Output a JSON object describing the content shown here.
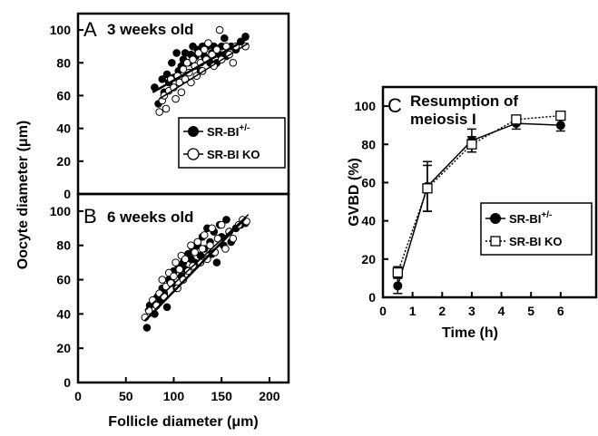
{
  "chart_data": [
    {
      "panel": "A",
      "type": "scatter",
      "title": "3 weeks old",
      "ylabel": "Oocyte diameter (μm)",
      "xlim": [
        0,
        220
      ],
      "ylim": [
        0,
        110
      ],
      "yticks": [
        0,
        20,
        40,
        60,
        80,
        100
      ],
      "legend": "center-right",
      "series": [
        {
          "name": "SR-BI+/-",
          "marker": "filled-circle",
          "points": [
            [
              80,
              65
            ],
            [
              84,
              55
            ],
            [
              88,
              70
            ],
            [
              90,
              62
            ],
            [
              93,
              73
            ],
            [
              95,
              68
            ],
            [
              98,
              80
            ],
            [
              100,
              71
            ],
            [
              103,
              86
            ],
            [
              105,
              75
            ],
            [
              108,
              78
            ],
            [
              110,
              82
            ],
            [
              112,
              86
            ],
            [
              115,
              80
            ],
            [
              118,
              85
            ],
            [
              120,
              90
            ],
            [
              123,
              84
            ],
            [
              125,
              88
            ],
            [
              128,
              75
            ],
            [
              130,
              90
            ],
            [
              132,
              84
            ],
            [
              135,
              90
            ],
            [
              138,
              80
            ],
            [
              140,
              86
            ],
            [
              142,
              90
            ],
            [
              145,
              80
            ],
            [
              148,
              85
            ],
            [
              150,
              90
            ],
            [
              153,
              95
            ],
            [
              155,
              84
            ],
            [
              160,
              90
            ],
            [
              165,
              88
            ],
            [
              170,
              93
            ],
            [
              175,
              96
            ]
          ],
          "trend": [
            [
              78,
              62
            ],
            [
              178,
              95
            ]
          ]
        },
        {
          "name": "SR-BI KO",
          "marker": "open-circle",
          "points": [
            [
              85,
              50
            ],
            [
              88,
              57
            ],
            [
              90,
              60
            ],
            [
              92,
              52
            ],
            [
              95,
              63
            ],
            [
              97,
              70
            ],
            [
              100,
              65
            ],
            [
              102,
              58
            ],
            [
              104,
              72
            ],
            [
              106,
              68
            ],
            [
              108,
              62
            ],
            [
              110,
              76
            ],
            [
              112,
              70
            ],
            [
              114,
              80
            ],
            [
              116,
              74
            ],
            [
              118,
              68
            ],
            [
              120,
              82
            ],
            [
              122,
              78
            ],
            [
              124,
              72
            ],
            [
              126,
              86
            ],
            [
              128,
              80
            ],
            [
              130,
              75
            ],
            [
              132,
              88
            ],
            [
              134,
              82
            ],
            [
              136,
              92
            ],
            [
              140,
              85
            ],
            [
              142,
              78
            ],
            [
              145,
              88
            ],
            [
              148,
              100
            ],
            [
              150,
              82
            ],
            [
              155,
              90
            ],
            [
              158,
              85
            ],
            [
              162,
              80
            ],
            [
              165,
              90
            ],
            [
              175,
              90
            ]
          ],
          "trend": [
            [
              85,
              58
            ],
            [
              178,
              92
            ]
          ]
        }
      ]
    },
    {
      "panel": "B",
      "type": "scatter",
      "title": "6 weeks old",
      "xlabel": "Follicle diameter (μm)",
      "xlim": [
        0,
        220
      ],
      "ylim": [
        0,
        110
      ],
      "xticks": [
        0,
        50,
        100,
        150,
        200
      ],
      "yticks": [
        0,
        20,
        40,
        60,
        80,
        100
      ],
      "series": [
        {
          "name": "SR-BI+/-",
          "marker": "filled-circle",
          "points": [
            [
              72,
              32
            ],
            [
              75,
              45
            ],
            [
              80,
              40
            ],
            [
              83,
              50
            ],
            [
              86,
              48
            ],
            [
              88,
              55
            ],
            [
              90,
              52
            ],
            [
              93,
              44
            ],
            [
              95,
              60
            ],
            [
              98,
              58
            ],
            [
              100,
              65
            ],
            [
              103,
              55
            ],
            [
              105,
              68
            ],
            [
              108,
              62
            ],
            [
              110,
              70
            ],
            [
              112,
              66
            ],
            [
              115,
              75
            ],
            [
              118,
              72
            ],
            [
              120,
              78
            ],
            [
              122,
              70
            ],
            [
              125,
              80
            ],
            [
              128,
              74
            ],
            [
              130,
              85
            ],
            [
              132,
              78
            ],
            [
              135,
              90
            ],
            [
              138,
              82
            ],
            [
              140,
              75
            ],
            [
              142,
              88
            ],
            [
              145,
              70
            ],
            [
              148,
              92
            ],
            [
              150,
              85
            ],
            [
              152,
              80
            ],
            [
              155,
              95
            ],
            [
              158,
              88
            ],
            [
              160,
              82
            ],
            [
              165,
              90
            ],
            [
              170,
              92
            ],
            [
              175,
              93
            ]
          ],
          "trend": [
            [
              70,
              36
            ],
            [
              175,
              96
            ]
          ]
        },
        {
          "name": "SR-BI KO",
          "marker": "open-circle",
          "points": [
            [
              70,
              38
            ],
            [
              74,
              42
            ],
            [
              78,
              48
            ],
            [
              82,
              45
            ],
            [
              85,
              52
            ],
            [
              88,
              60
            ],
            [
              90,
              50
            ],
            [
              92,
              56
            ],
            [
              95,
              64
            ],
            [
              97,
              58
            ],
            [
              100,
              62
            ],
            [
              102,
              70
            ],
            [
              104,
              55
            ],
            [
              106,
              66
            ],
            [
              108,
              74
            ],
            [
              110,
              60
            ],
            [
              112,
              72
            ],
            [
              115,
              65
            ],
            [
              118,
              80
            ],
            [
              120,
              68
            ],
            [
              122,
              76
            ],
            [
              125,
              82
            ],
            [
              128,
              70
            ],
            [
              130,
              78
            ],
            [
              132,
              86
            ],
            [
              135,
              72
            ],
            [
              138,
              80
            ],
            [
              140,
              90
            ],
            [
              143,
              76
            ],
            [
              146,
              84
            ],
            [
              150,
              92
            ],
            [
              154,
              78
            ],
            [
              158,
              88
            ],
            [
              162,
              84
            ],
            [
              168,
              92
            ],
            [
              172,
              95
            ],
            [
              176,
              94
            ]
          ],
          "trend": [
            [
              70,
              42
            ],
            [
              178,
              98
            ]
          ]
        }
      ]
    },
    {
      "panel": "C",
      "type": "line",
      "title": "Resumption of meiosis I",
      "title_lines": [
        "Resumption of",
        "meiosis I"
      ],
      "xlabel": "Time (h)",
      "ylabel": "GVBD (%)",
      "xlim": [
        0,
        7.2
      ],
      "ylim": [
        0,
        110
      ],
      "xticks": [
        0,
        1,
        2,
        3,
        4,
        5,
        6
      ],
      "yticks": [
        0,
        20,
        40,
        60,
        80,
        100
      ],
      "legend": "right",
      "series": [
        {
          "name": "SR-BI+/-",
          "marker": "filled-circle",
          "line": "solid",
          "x": [
            0.5,
            1.5,
            3,
            4.5,
            6
          ],
          "y": [
            6,
            58,
            82,
            91,
            90
          ],
          "err": [
            4,
            13,
            6,
            3,
            3
          ]
        },
        {
          "name": "SR-BI KO",
          "marker": "open-square",
          "line": "dotted",
          "x": [
            0.5,
            1.5,
            3,
            4.5,
            6
          ],
          "y": [
            13,
            57,
            80,
            93,
            95
          ],
          "err": [
            3,
            12,
            4,
            2,
            2
          ]
        }
      ]
    }
  ],
  "labels": {
    "panel_a": "A",
    "panel_b": "B",
    "panel_c": "C",
    "title_a": "3 weeks old",
    "title_b": "6 weeks old",
    "title_c_line1": "Resumption of",
    "title_c_line2": "meiosis I",
    "y_left": "Oocyte diameter (μm)",
    "x_left": "Follicle diameter (μm)",
    "y_right": "GVBD (%)",
    "x_right": "Time (h)",
    "legend_het_base": "SR-BI",
    "legend_het_sup": "+/-",
    "legend_ko": "SR-BI KO"
  }
}
